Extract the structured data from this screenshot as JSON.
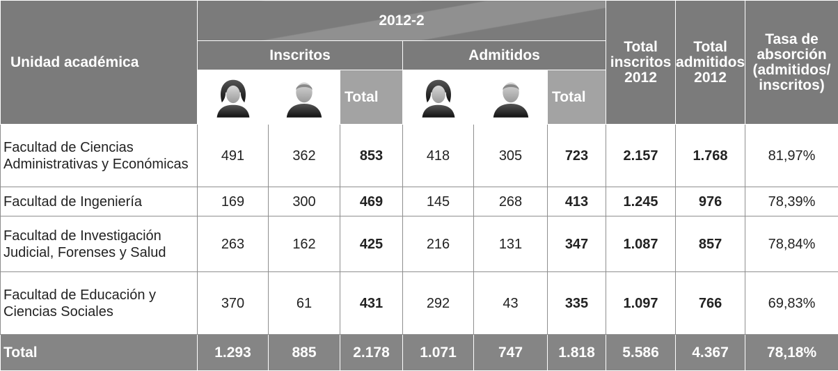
{
  "header": {
    "unit": "Unidad académica",
    "period": "2012-2",
    "inscritos": "Inscritos",
    "admitidos": "Admitidos",
    "subtotals": [
      "Total",
      "Total"
    ],
    "total_inscritos": "Total inscritos 2012",
    "total_admitidos": "Total admitidos 2012",
    "tasa": "Tasa de absorción (admitidos/ inscritos)"
  },
  "rows": [
    {
      "label": "Facultad de Ciencias Administrativas y Económicas",
      "values": [
        "491",
        "362",
        "853",
        "418",
        "305",
        "723",
        "2.157",
        "1.768",
        "81,97%"
      ]
    },
    {
      "label": "Facultad de Ingeniería",
      "values": [
        "169",
        "300",
        "469",
        "145",
        "268",
        "413",
        "1.245",
        "976",
        "78,39%"
      ]
    },
    {
      "label": "Facultad de Investigación Judicial, Forenses y Salud",
      "values": [
        "263",
        "162",
        "425",
        "216",
        "131",
        "347",
        "1.087",
        "857",
        "78,84%"
      ]
    },
    {
      "label": "Facultad de Educación y Ciencias Sociales",
      "values": [
        "370",
        "61",
        "431",
        "292",
        "43",
        "335",
        "1.097",
        "766",
        "69,83%"
      ]
    }
  ],
  "total": {
    "label": "Total",
    "values": [
      "1.293",
      "885",
      "2.178",
      "1.071",
      "747",
      "1.818",
      "5.586",
      "4.367",
      "78,18%"
    ]
  }
}
